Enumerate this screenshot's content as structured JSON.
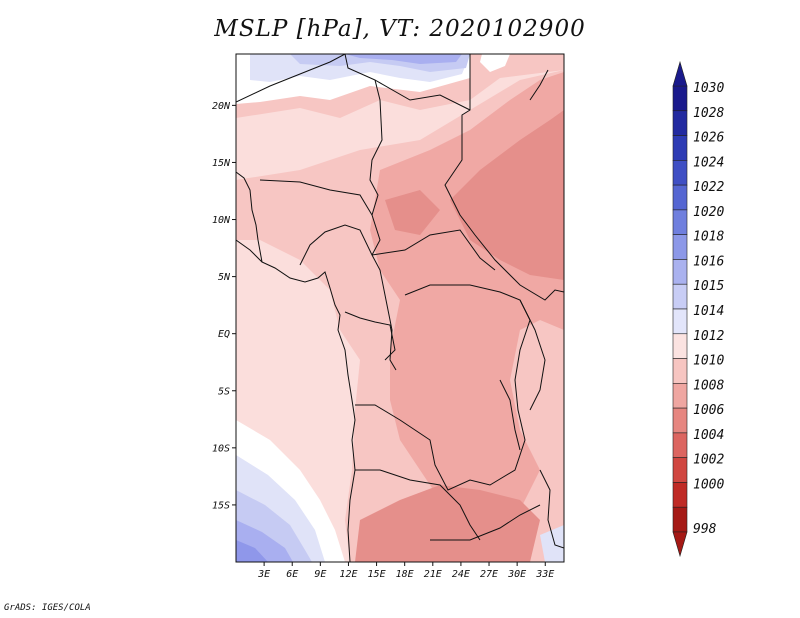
{
  "title": "MSLP [hPa], VT: 2020102900",
  "credit": "GrADS: IGES/COLA",
  "map": {
    "lat_ticks": [
      "20N",
      "15N",
      "10N",
      "5N",
      "EQ",
      "5S",
      "10S",
      "15S"
    ],
    "lat_values": [
      20,
      15,
      10,
      5,
      0,
      -5,
      -10,
      -15
    ],
    "lon_ticks": [
      "3E",
      "6E",
      "9E",
      "12E",
      "15E",
      "18E",
      "21E",
      "24E",
      "27E",
      "30E",
      "33E"
    ],
    "lon_values": [
      3,
      6,
      9,
      12,
      15,
      18,
      21,
      24,
      27,
      30,
      33
    ],
    "lon_range": [
      0,
      35
    ],
    "lat_range": [
      -20,
      24.5
    ]
  },
  "colorbar": {
    "unit": "hPa",
    "levels": [
      "1030",
      "1028",
      "1026",
      "1024",
      "1022",
      "1020",
      "1018",
      "1016",
      "1015",
      "1014",
      "1012",
      "1010",
      "1008",
      "1006",
      "1004",
      "1002",
      "1000",
      "998"
    ],
    "colors": [
      "#1a1a8c",
      "#222aa0",
      "#2d3bb4",
      "#3f4fc4",
      "#5566d2",
      "#6f7fde",
      "#8c98e8",
      "#aab2ef",
      "#c8cdf5",
      "#e2e5fa",
      "#fbe3e1",
      "#f6c5c1",
      "#efa6a1",
      "#e68680",
      "#dc6560",
      "#d04640",
      "#bf2a25",
      "#a51915"
    ]
  },
  "fields": {
    "low_1008": "#e58f8b",
    "low_1010": "#f0a8a4",
    "mid_1012": "#f7c6c3",
    "mid_1013": "#fbdedc",
    "high_1014": "#ffffff",
    "high_1015": "#e0e3f8",
    "high_1016": "#c6cbf3",
    "high_1018": "#a9aff0",
    "high_1020": "#8f97ea"
  }
}
